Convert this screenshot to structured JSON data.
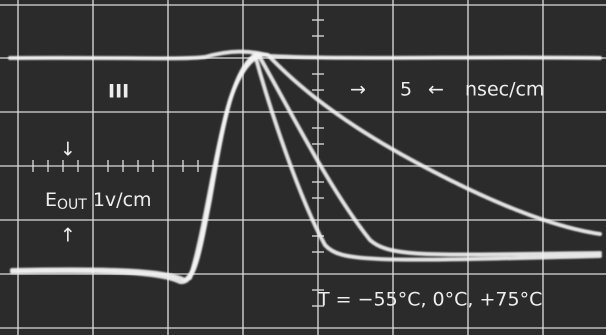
{
  "labels": {
    "panel": "III",
    "time_scale_value": "5",
    "time_scale_unit": "nsec/cm",
    "output_symbol": "E",
    "output_subscript": "OUT",
    "output_scale": "1v/cm",
    "temperatures": "T = −55°C, 0°C, +75°C"
  }
}
